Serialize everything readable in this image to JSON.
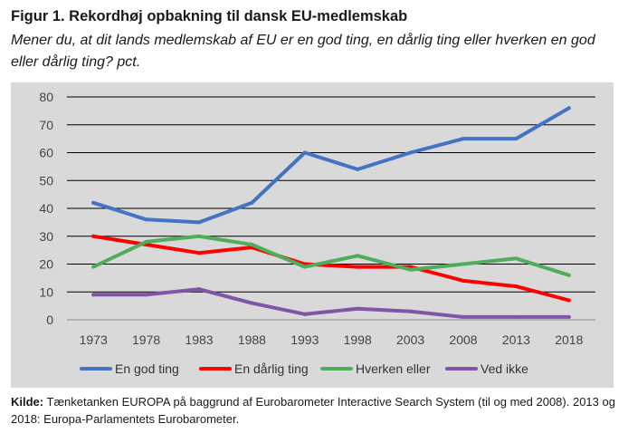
{
  "figure": {
    "title": "Figur 1. Rekordhøj opbakning til dansk EU-medlemskab",
    "subtitle": "Mener du, at dit lands medlemskab af EU er en god ting, en dårlig ting eller hverken en god eller dårlig ting? pct.",
    "source_label": "Kilde:",
    "source_text": "Tænketanken EUROPA på baggrund af Eurobarometer Interactive Search System (til og med 2008). 2013 og 2018: Europa-Parlamentets Eurobarometer."
  },
  "chart_data": {
    "type": "line",
    "title": "Figur 1. Rekordhøj opbakning til dansk EU-medlemskab",
    "x": [
      "1973",
      "1978",
      "1983",
      "1988",
      "1993",
      "1998",
      "2003",
      "2008",
      "2013",
      "2018"
    ],
    "ylim": [
      0,
      80
    ],
    "yticks": [
      0,
      10,
      20,
      30,
      40,
      50,
      60,
      70,
      80
    ],
    "grid": true,
    "legend_position": "bottom",
    "series": [
      {
        "name": "En god ting",
        "color": "#4472c4",
        "values": [
          42,
          36,
          35,
          42,
          60,
          54,
          60,
          65,
          65,
          76
        ]
      },
      {
        "name": "En dårlig ting",
        "color": "#ff0000",
        "values": [
          30,
          27,
          24,
          26,
          20,
          19,
          19,
          14,
          12,
          7
        ]
      },
      {
        "name": "Hverken eller",
        "color": "#4fad5b",
        "values": [
          19,
          28,
          30,
          27,
          19,
          23,
          18,
          20,
          22,
          16
        ]
      },
      {
        "name": "Ved ikke",
        "color": "#7f56a6",
        "values": [
          9,
          9,
          11,
          6,
          2,
          4,
          3,
          1,
          1,
          1
        ]
      }
    ]
  }
}
